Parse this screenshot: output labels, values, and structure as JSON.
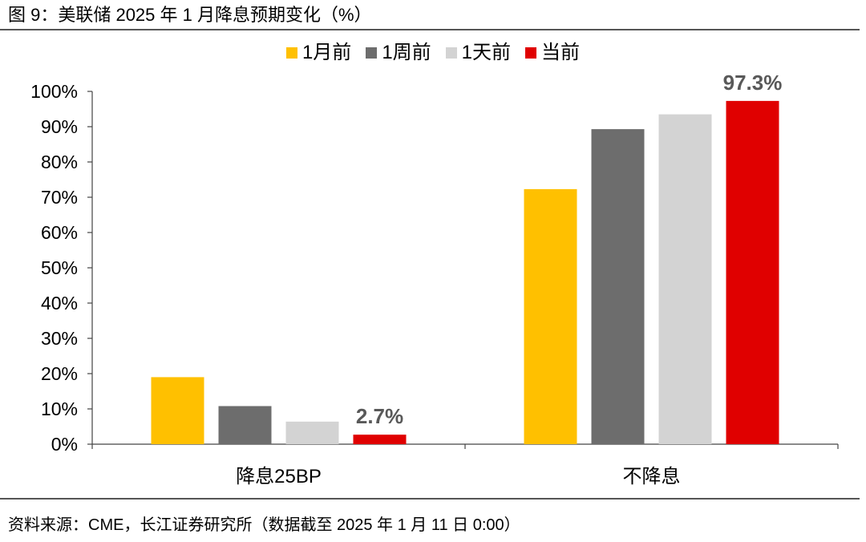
{
  "header": {
    "title": "图 9：美联储 2025 年 1 月降息预期变化（%）"
  },
  "footer": {
    "source": "资料来源：CME，长江证券研究所（数据截至 2025 年 1 月 11 日 0:00）"
  },
  "chart_data": {
    "type": "bar",
    "categories": [
      "降息25BP",
      "不降息"
    ],
    "series": [
      {
        "name": "1月前",
        "color": "#FFC000",
        "values": [
          19.0,
          72.3
        ]
      },
      {
        "name": "1周前",
        "color": "#6D6D6D",
        "values": [
          10.8,
          89.3
        ]
      },
      {
        "name": "1天前",
        "color": "#D3D3D3",
        "values": [
          6.4,
          93.5
        ]
      },
      {
        "name": "当前",
        "color": "#E00000",
        "values": [
          2.7,
          97.3
        ]
      }
    ],
    "data_labels": [
      {
        "series": 3,
        "category": 0,
        "text": "2.7%"
      },
      {
        "series": 3,
        "category": 1,
        "text": "97.3%"
      }
    ],
    "ylim": [
      0,
      100
    ],
    "yticks": [
      "0%",
      "10%",
      "20%",
      "30%",
      "40%",
      "50%",
      "60%",
      "70%",
      "80%",
      "90%",
      "100%"
    ],
    "xlabel": "",
    "ylabel": "",
    "legend": "top-center",
    "grid": false
  }
}
